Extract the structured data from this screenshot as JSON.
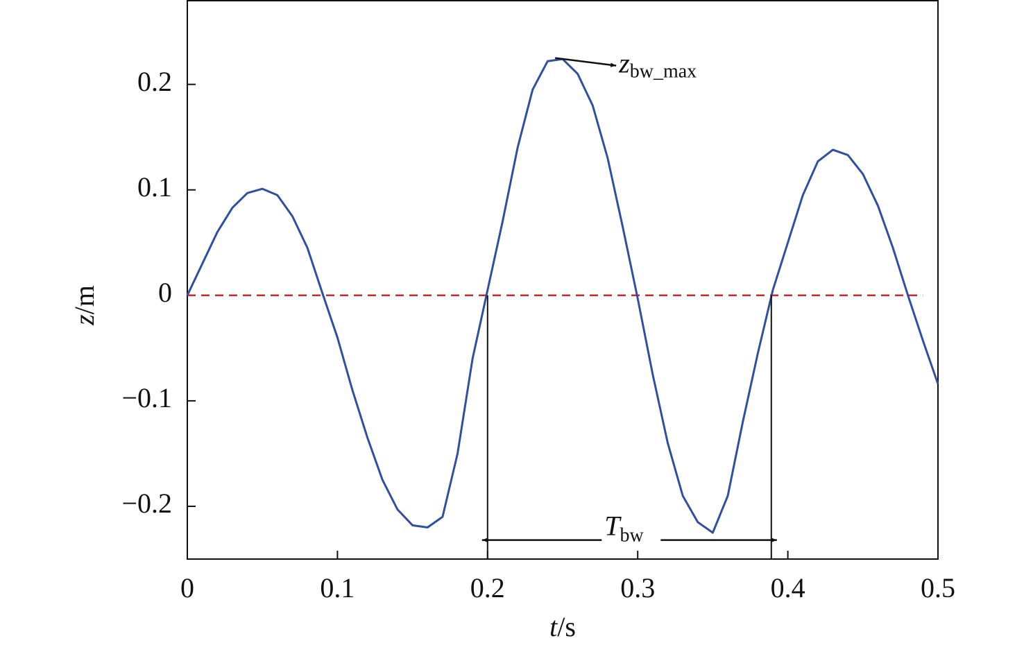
{
  "chart_data": {
    "type": "line",
    "x_label": {
      "var": "t",
      "unit": "/s"
    },
    "y_label": {
      "var": "z",
      "unit": "/m"
    },
    "x": [
      0,
      0.01,
      0.02,
      0.03,
      0.04,
      0.05,
      0.06,
      0.07,
      0.08,
      0.09,
      0.1,
      0.11,
      0.12,
      0.13,
      0.14,
      0.15,
      0.16,
      0.17,
      0.18,
      0.19,
      0.2,
      0.21,
      0.22,
      0.23,
      0.24,
      0.25,
      0.26,
      0.27,
      0.28,
      0.29,
      0.3,
      0.31,
      0.32,
      0.33,
      0.34,
      0.35,
      0.36,
      0.37,
      0.38,
      0.39,
      0.4,
      0.41,
      0.42,
      0.43,
      0.44,
      0.45,
      0.46,
      0.47,
      0.48,
      0.49,
      0.5
    ],
    "series": [
      {
        "color": "#2f4fa2",
        "values": [
          0,
          0.03,
          0.06,
          0.083,
          0.097,
          0.101,
          0.095,
          0.075,
          0.045,
          0.002,
          -0.04,
          -0.09,
          -0.135,
          -0.175,
          -0.203,
          -0.218,
          -0.22,
          -0.21,
          -0.15,
          -0.06,
          0.005,
          0.07,
          0.14,
          0.195,
          0.222,
          0.224,
          0.21,
          0.18,
          0.13,
          0.065,
          -0.003,
          -0.075,
          -0.14,
          -0.19,
          -0.215,
          -0.225,
          -0.19,
          -0.12,
          -0.055,
          0.005,
          0.05,
          0.095,
          0.127,
          0.138,
          0.133,
          0.115,
          0.085,
          0.045,
          0.0,
          -0.043,
          -0.084
        ]
      }
    ],
    "reference_line": {
      "y": 0,
      "x": [
        0,
        0.49
      ],
      "color": "#d62728",
      "dashed": true
    },
    "annotations": [
      {
        "text": "z",
        "sub": "bw_max",
        "x": 0.245,
        "y": 0.225
      },
      {
        "text": "T",
        "sub": "bw",
        "x0": 0.2,
        "x1": 0.389,
        "y": -0.232
      }
    ],
    "xlim": [
      0,
      0.5
    ],
    "xticks": [
      0,
      0.1,
      0.2,
      0.3,
      0.4,
      0.5
    ],
    "ylim": [
      -0.25,
      0.28
    ],
    "yticks": [
      {
        "value": -0.2,
        "label": "−0.2"
      },
      {
        "value": -0.1,
        "label": "−0.1"
      },
      0,
      0.1,
      0.2
    ],
    "grid": false
  }
}
